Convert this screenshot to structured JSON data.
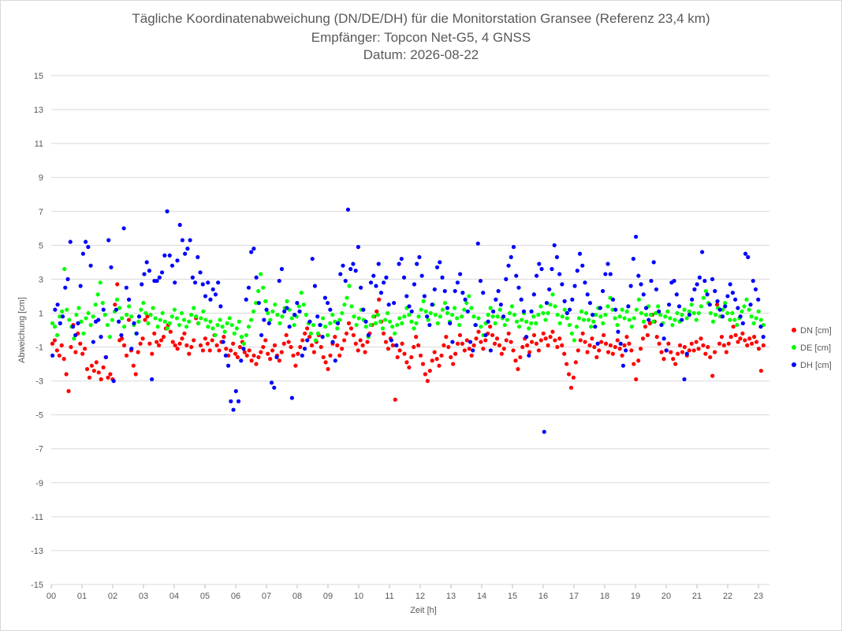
{
  "chart_data": {
    "type": "scatter",
    "title_lines": [
      "Tägliche Koordinatenabweichung (DN/DE/DH) für die Monitorstation Gransee (Referenz 23,4 km)",
      "Empfänger: Topcon Net-G5, 4 GNSS",
      "Datum: 2026-08-22"
    ],
    "xlabel": "Zeit [h]",
    "ylabel": "Abweichung [cm]",
    "xlim": [
      0,
      23.25
    ],
    "ylim": [
      -15,
      15
    ],
    "x_ticks": [
      "00",
      "01",
      "02",
      "03",
      "04",
      "05",
      "06",
      "07",
      "08",
      "09",
      "10",
      "11",
      "12",
      "13",
      "14",
      "15",
      "16",
      "17",
      "18",
      "19",
      "20",
      "21",
      "22",
      "23"
    ],
    "y_ticks": [
      15,
      13,
      11,
      9,
      7,
      5,
      3,
      1,
      -1,
      -3,
      -5,
      -7,
      -9,
      -11,
      -13,
      -15
    ],
    "grid": "horizontal",
    "legend_position": "right",
    "x_step": 0.025,
    "series": [
      {
        "name": "DN [cm]",
        "color": "#ff0000",
        "y": [
          -0.8,
          -0.6,
          -1.2,
          -1.5,
          -0.9,
          -1.7,
          -2.6,
          -3.6,
          -1.0,
          0.3,
          -1.3,
          -0.2,
          -0.8,
          -1.4,
          -1.1,
          -2.3,
          -2.8,
          -2.1,
          -2.4,
          -1.9,
          -2.5,
          -2.9,
          -2.2,
          -1.6,
          -2.8,
          -2.6,
          -2.9,
          1.5,
          2.7,
          -0.6,
          -0.5,
          -0.9,
          -1.5,
          0.6,
          -1.2,
          -2.1,
          -2.6,
          -1.3,
          -0.8,
          -0.5,
          0.6,
          0.8,
          -0.8,
          -1.4,
          -0.2,
          -0.7,
          -0.9,
          -0.6,
          -0.4,
          0.1,
          0.3,
          -0.1,
          -0.7,
          -0.9,
          -1.1,
          -0.8,
          -0.5,
          -0.2,
          -0.9,
          -1.4,
          -1.0,
          -0.6,
          0.7,
          0.4,
          -0.9,
          -1.2,
          -0.5,
          -0.8,
          -1.2,
          -0.6,
          -0.3,
          -0.9,
          -1.2,
          -0.7,
          -0.4,
          -1.1,
          -1.5,
          -1.2,
          -0.8,
          -1.4,
          -1.6,
          -1.0,
          -0.7,
          -1.3,
          -1.5,
          -1.2,
          -1.8,
          -1.5,
          -2.0,
          -1.6,
          -1.3,
          -1.0,
          -0.6,
          -1.4,
          -1.7,
          -1.2,
          -0.9,
          -1.5,
          -1.8,
          -1.3,
          -0.8,
          -0.3,
          -0.7,
          -1.0,
          -1.5,
          -2.1,
          -1.4,
          -1.0,
          -0.6,
          -0.2,
          0.1,
          -0.4,
          -0.9,
          -1.3,
          -0.7,
          -0.3,
          -1.0,
          -1.6,
          -1.9,
          -2.3,
          -1.5,
          -0.8,
          -0.4,
          -0.9,
          -1.5,
          -1.1,
          -0.6,
          -0.2,
          0.4,
          0.1,
          -0.3,
          -0.8,
          -1.2,
          -0.6,
          -0.9,
          -1.3,
          -0.7,
          -0.2,
          0.3,
          0.8,
          1.1,
          1.8,
          0.5,
          -0.2,
          -0.7,
          -1.1,
          -0.5,
          -0.9,
          -4.1,
          -1.6,
          -1.2,
          -0.8,
          -1.4,
          -1.9,
          -2.2,
          -1.6,
          -1.0,
          -0.4,
          -0.9,
          -1.5,
          -2.0,
          -2.6,
          -3.0,
          -2.4,
          -1.8,
          -1.3,
          -1.7,
          -2.1,
          -1.5,
          -0.9,
          -0.4,
          -1.0,
          -1.6,
          -2.0,
          -1.4,
          -0.8,
          -0.3,
          -0.8,
          -1.2,
          -0.6,
          -1.1,
          -1.5,
          -0.9,
          -0.5,
          -0.1,
          -0.7,
          -1.1,
          -0.6,
          -0.2,
          0.2,
          -0.3,
          -0.8,
          -0.5,
          -0.9,
          -1.4,
          -1.1,
          -0.6,
          -0.2,
          -0.7,
          -1.2,
          -1.8,
          -2.3,
          -1.6,
          -1.0,
          -0.5,
          -0.9,
          -1.3,
          -0.7,
          -0.3,
          -0.8,
          -1.2,
          -0.6,
          -0.2,
          -0.5,
          -0.9,
          -0.4,
          -0.1,
          -0.6,
          -1.0,
          -0.5,
          -0.9,
          -1.4,
          -2.0,
          -2.6,
          -3.4,
          -2.8,
          -1.9,
          -1.2,
          -0.6,
          -0.2,
          -0.7,
          -1.3,
          -0.9,
          -0.5,
          -1.0,
          -1.6,
          -1.2,
          -0.7,
          -0.3,
          -0.8,
          -1.3,
          -0.9,
          -1.4,
          -1.0,
          -0.6,
          -1.1,
          -1.5,
          -0.9,
          -0.4,
          -0.8,
          -1.2,
          -2.0,
          -2.9,
          -1.8,
          -1.1,
          -0.5,
          0.2,
          -0.3,
          0.4,
          0.9,
          0.5,
          -0.4,
          -0.8,
          -1.3,
          -1.7,
          -1.2,
          -0.8,
          -1.3,
          -1.7,
          -2.0,
          -1.4,
          -0.9,
          -1.3,
          -1.0,
          -1.5,
          -1.2,
          -0.8,
          -1.2,
          -0.7,
          -1.1,
          -0.5,
          -0.9,
          -1.4,
          -1.0,
          -1.6,
          -2.7,
          -1.3,
          1.5,
          -0.8,
          -0.4,
          -0.9,
          -1.3,
          -0.8,
          -0.4,
          0.2,
          -0.3,
          -0.7,
          -0.5,
          -0.2,
          -0.6,
          -0.9,
          -0.5,
          -0.8,
          -0.4,
          -0.7,
          -1.1,
          -2.4,
          -0.9
        ]
      },
      {
        "name": "DE [cm]",
        "color": "#00ff00",
        "y": [
          0.4,
          0.2,
          -0.3,
          0.8,
          1.1,
          3.6,
          1.2,
          0.6,
          0.2,
          -0.5,
          0.9,
          1.3,
          0.5,
          -0.2,
          0.7,
          1.0,
          0.3,
          0.8,
          1.5,
          2.1,
          2.8,
          1.6,
          0.9,
          0.3,
          -0.4,
          0.6,
          1.1,
          1.8,
          1.3,
          0.7,
          0.2,
          0.9,
          1.4,
          0.8,
          0.3,
          -0.2,
          0.5,
          1.2,
          1.6,
          1.0,
          0.4,
          0.9,
          1.3,
          0.7,
          0.2,
          0.6,
          1.0,
          0.5,
          0.1,
          0.4,
          0.8,
          1.2,
          0.7,
          0.3,
          1.0,
          0.6,
          0.2,
          0.5,
          0.9,
          1.3,
          0.8,
          0.4,
          0.7,
          1.1,
          0.6,
          0.2,
          0.5,
          0.1,
          -0.3,
          0.3,
          0.6,
          0.2,
          -0.1,
          0.4,
          0.7,
          0.3,
          -0.2,
          0.1,
          0.5,
          -0.4,
          -0.8,
          -0.3,
          0.2,
          0.6,
          1.1,
          1.6,
          2.3,
          3.3,
          2.5,
          1.7,
          1.0,
          0.6,
          1.1,
          1.5,
          0.9,
          0.4,
          0.8,
          1.3,
          1.7,
          1.2,
          0.7,
          0.3,
          0.8,
          1.4,
          2.2,
          1.5,
          0.9,
          0.4,
          -0.2,
          0.3,
          -0.6,
          -0.2,
          0.3,
          0.7,
          0.2,
          -0.3,
          0.4,
          0.9,
          0.5,
          0.1,
          0.6,
          1.0,
          1.5,
          1.9,
          2.6,
          1.4,
          0.8,
          0.3,
          0.7,
          1.2,
          0.6,
          0.2,
          -0.4,
          0.3,
          0.8,
          0.4,
          0.9,
          0.5,
          0.1,
          0.6,
          1.0,
          0.5,
          0.2,
          -0.2,
          0.3,
          0.7,
          0.4,
          0.8,
          1.3,
          0.9,
          0.5,
          0.1,
          0.4,
          0.8,
          1.2,
          1.7,
          1.1,
          0.6,
          1.0,
          1.5,
          0.9,
          0.4,
          0.8,
          1.2,
          1.6,
          1.0,
          0.5,
          0.9,
          1.3,
          0.7,
          0.3,
          0.8,
          1.2,
          1.6,
          2.0,
          1.3,
          0.8,
          0.3,
          0.7,
          0.2,
          -0.3,
          0.4,
          0.9,
          1.3,
          0.8,
          0.4,
          0.8,
          1.2,
          0.7,
          0.3,
          0.6,
          1.0,
          1.4,
          0.9,
          0.5,
          0.2,
          0.6,
          1.0,
          0.5,
          0.1,
          0.4,
          0.8,
          0.4,
          0.9,
          1.4,
          1.0,
          0.6,
          1.0,
          1.5,
          2.1,
          1.4,
          0.9,
          0.4,
          0.8,
          1.2,
          0.7,
          0.3,
          -0.2,
          -0.6,
          0.2,
          0.7,
          1.1,
          0.6,
          1.0,
          0.6,
          0.2,
          0.5,
          0.9,
          1.3,
          0.8,
          0.4,
          0.9,
          1.4,
          1.9,
          1.2,
          0.7,
          0.3,
          0.8,
          1.2,
          0.7,
          1.1,
          0.6,
          0.2,
          0.7,
          1.2,
          1.8,
          1.0,
          0.5,
          0.9,
          1.4,
          0.9,
          0.5,
          1.0,
          1.4,
          0.9,
          0.4,
          0.8,
          1.1,
          0.7,
          0.3,
          0.6,
          1.0,
          0.5,
          0.9,
          1.2,
          0.7,
          1.1,
          1.5,
          1.0,
          0.6,
          1.0,
          1.4,
          1.9,
          2.3,
          1.6,
          1.0,
          0.5,
          0.9,
          1.3,
          0.8,
          1.2,
          1.6,
          1.0,
          0.6,
          1.0,
          0.6,
          0.3,
          0.7,
          1.1,
          1.4,
          1.8,
          1.2,
          0.8,
          0.4,
          0.7,
          1.1,
          0.6,
          0.3
        ]
      },
      {
        "name": "DH [cm]",
        "color": "#0000ff",
        "y": [
          -1.5,
          1.2,
          1.5,
          0.4,
          0.8,
          2.5,
          3.0,
          5.2,
          0.2,
          -0.3,
          0.4,
          2.6,
          4.5,
          5.2,
          4.9,
          3.8,
          -0.7,
          0.5,
          0.6,
          -0.4,
          1.2,
          -1.6,
          5.3,
          3.7,
          -3.0,
          1.2,
          0.5,
          -0.3,
          6.0,
          2.5,
          1.8,
          -1.1,
          0.4,
          -0.2,
          0.8,
          2.7,
          3.3,
          4.0,
          3.5,
          -2.9,
          2.9,
          2.9,
          3.1,
          3.4,
          4.4,
          7.0,
          4.4,
          3.8,
          2.8,
          4.1,
          6.2,
          5.3,
          4.5,
          4.8,
          5.3,
          3.1,
          2.8,
          4.3,
          3.4,
          2.7,
          2.0,
          2.8,
          1.8,
          2.4,
          2.1,
          2.8,
          1.4,
          -0.7,
          -1.5,
          -2.1,
          -4.2,
          -4.7,
          -3.6,
          -4.2,
          -1.8,
          -1.1,
          1.8,
          2.5,
          4.6,
          4.8,
          3.1,
          1.6,
          -0.3,
          0.6,
          1.2,
          0.4,
          -3.1,
          -3.4,
          -1.6,
          2.9,
          3.6,
          1.1,
          1.3,
          0.2,
          -4.0,
          0.9,
          1.6,
          1.1,
          -1.5,
          -1.1,
          -0.6,
          0.5,
          4.2,
          2.6,
          0.8,
          0.3,
          -0.4,
          1.9,
          1.6,
          1.2,
          -0.7,
          -1.8,
          0.4,
          3.3,
          3.8,
          2.9,
          7.1,
          3.6,
          3.9,
          3.5,
          4.9,
          2.5,
          1.2,
          0.5,
          -0.3,
          2.8,
          3.2,
          2.6,
          3.9,
          2.2,
          2.8,
          3.1,
          1.5,
          -0.6,
          1.6,
          -0.9,
          3.9,
          4.2,
          3.1,
          2.0,
          1.4,
          1.1,
          2.7,
          3.9,
          4.3,
          3.2,
          2.0,
          0.8,
          0.3,
          1.5,
          2.4,
          3.7,
          4.0,
          3.1,
          2.3,
          1.3,
          0.4,
          -0.7,
          2.3,
          2.8,
          3.3,
          2.2,
          1.8,
          1.1,
          -0.7,
          -1.2,
          0.3,
          5.1,
          2.9,
          2.2,
          -0.3,
          0.5,
          -1.2,
          1.1,
          1.8,
          2.3,
          1.5,
          0.8,
          3.0,
          3.8,
          4.3,
          4.9,
          3.2,
          2.5,
          1.8,
          1.1,
          -0.4,
          -1.5,
          1.1,
          2.1,
          3.2,
          3.9,
          3.6,
          -6.0,
          1.6,
          2.4,
          3.6,
          5.0,
          4.3,
          3.3,
          2.7,
          1.7,
          1.0,
          1.2,
          1.8,
          2.6,
          3.5,
          4.5,
          3.8,
          2.8,
          2.1,
          1.6,
          0.9,
          0.2,
          -0.8,
          1.3,
          2.3,
          3.3,
          3.9,
          3.3,
          1.8,
          1.2,
          -0.1,
          -0.8,
          -2.1,
          -1.2,
          1.4,
          2.6,
          4.2,
          5.5,
          3.2,
          2.7,
          2.1,
          1.3,
          0.6,
          2.9,
          4.0,
          2.4,
          1.1,
          0.3,
          -0.5,
          -1.2,
          1.5,
          2.8,
          2.9,
          2.1,
          1.4,
          0.6,
          -2.9,
          -1.4,
          0.9,
          1.8,
          2.4,
          2.7,
          3.1,
          4.6,
          2.9,
          2.1,
          1.5,
          3.0,
          2.3,
          1.7,
          1.2,
          0.8,
          1.4,
          2.0,
          2.7,
          2.2,
          1.8,
          1.3,
          0.8,
          0.4,
          4.5,
          4.3,
          1.5,
          2.9,
          2.4,
          1.8,
          0.2,
          -0.4
        ]
      }
    ]
  }
}
